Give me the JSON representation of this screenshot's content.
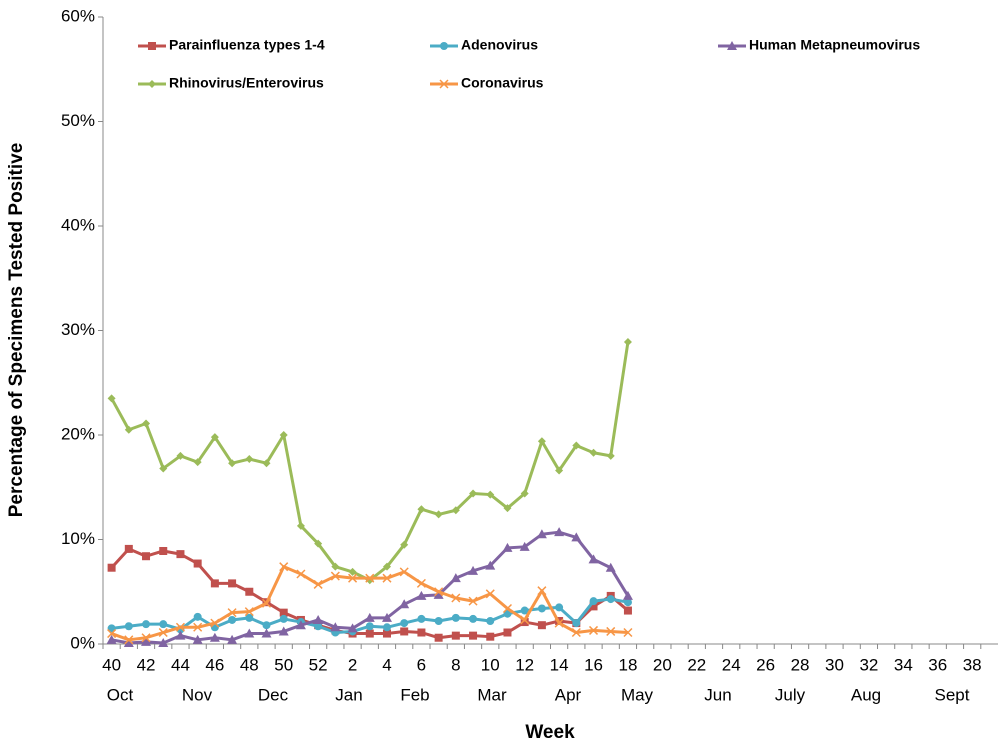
{
  "chart_data": {
    "type": "line",
    "x_label": "Week",
    "y_label": "Percentage of Specimens Tested Positive",
    "categories": [
      "40",
      null,
      "42",
      null,
      "44",
      null,
      "46",
      null,
      "48",
      null,
      "50",
      null,
      "52",
      null,
      "2",
      null,
      "4",
      null,
      "6",
      null,
      "8",
      null,
      "10",
      null,
      "12",
      null,
      "14",
      null,
      "16",
      null,
      "18",
      null,
      "20",
      null,
      "22",
      null,
      "24",
      null,
      "26",
      null,
      "28",
      null,
      "30",
      null,
      "32",
      null,
      "34",
      null,
      "36",
      null,
      "38",
      null
    ],
    "months": [
      "Oct",
      "Nov",
      "Dec",
      "Jan",
      "Feb",
      "Mar",
      "Apr",
      "May",
      "Jun",
      "July",
      "Aug",
      "Sept"
    ],
    "ylim": [
      0,
      60
    ],
    "yticks": [
      {
        "value": 0,
        "label": "0%"
      },
      {
        "value": 10,
        "label": "10%"
      },
      {
        "value": 20,
        "label": "20%"
      },
      {
        "value": 30,
        "label": "30%"
      },
      {
        "value": 40,
        "label": "40%"
      },
      {
        "value": 50,
        "label": "50%"
      },
      {
        "value": 60,
        "label": "60%"
      }
    ],
    "grid": false,
    "series": [
      {
        "name": "Parainfluenza types 1-4",
        "color": "#c0504d",
        "marker": "square",
        "values": [
          7.3,
          9.1,
          8.4,
          8.9,
          8.6,
          7.7,
          5.8,
          5.8,
          5,
          4,
          3,
          2.3,
          1.8,
          1.3,
          1,
          1,
          1,
          1.2,
          1.1,
          0.6,
          0.8,
          0.8,
          0.7,
          1.1,
          2.1,
          1.8,
          2.2,
          2,
          3.6,
          4.6,
          3.2,
          null,
          null,
          null,
          null,
          null,
          null,
          null,
          null,
          null,
          null,
          null,
          null,
          null,
          null,
          null,
          null,
          null,
          null,
          null,
          null,
          null
        ]
      },
      {
        "name": "Adenovirus",
        "color": "#4bacc6",
        "marker": "circle",
        "values": [
          1.5,
          1.7,
          1.9,
          1.9,
          1.4,
          2.6,
          1.6,
          2.3,
          2.5,
          1.8,
          2.4,
          2.1,
          1.7,
          1.1,
          1.2,
          1.7,
          1.6,
          2,
          2.4,
          2.2,
          2.5,
          2.4,
          2.2,
          2.9,
          3.2,
          3.4,
          3.5,
          2,
          4.1,
          4.3,
          4,
          null,
          null,
          null,
          null,
          null,
          null,
          null,
          null,
          null,
          null,
          null,
          null,
          null,
          null,
          null,
          null,
          null,
          null,
          null,
          null,
          null
        ]
      },
      {
        "name": "Human Metapneumovirus",
        "color": "#8064a2",
        "marker": "triangle",
        "values": [
          0.4,
          0.1,
          0.2,
          0.1,
          0.8,
          0.4,
          0.6,
          0.4,
          1,
          1,
          1.2,
          1.8,
          2.3,
          1.6,
          1.5,
          2.5,
          2.5,
          3.8,
          4.6,
          4.7,
          6.3,
          7,
          7.5,
          9.2,
          9.3,
          10.5,
          10.7,
          10.2,
          8.1,
          7.3,
          4.6,
          null,
          null,
          null,
          null,
          null,
          null,
          null,
          null,
          null,
          null,
          null,
          null,
          null,
          null,
          null,
          null,
          null,
          null,
          null,
          null,
          null
        ]
      },
      {
        "name": "Rhinovirus/Enterovirus",
        "color": "#9bbb59",
        "marker": "diamond",
        "values": [
          23.5,
          20.5,
          21.1,
          16.8,
          18,
          17.4,
          19.8,
          17.3,
          17.7,
          17.3,
          20,
          11.3,
          9.6,
          7.4,
          6.9,
          6.1,
          7.4,
          9.5,
          12.9,
          12.4,
          12.8,
          14.4,
          14.3,
          13,
          14.4,
          19.4,
          16.6,
          19,
          18.3,
          18,
          28.9,
          null,
          null,
          null,
          null,
          null,
          null,
          null,
          null,
          null,
          null,
          null,
          null,
          null,
          null,
          null,
          null,
          null,
          null,
          null,
          null,
          null
        ]
      },
      {
        "name": "Coronavirus",
        "color": "#f79646",
        "marker": "x",
        "values": [
          1,
          0.4,
          0.6,
          1.1,
          1.6,
          1.6,
          2,
          3,
          3.1,
          3.9,
          7.4,
          6.7,
          5.7,
          6.5,
          6.3,
          6.3,
          6.3,
          6.9,
          5.8,
          5,
          4.4,
          4.1,
          4.8,
          3.4,
          2.3,
          5.1,
          2,
          1.1,
          1.3,
          1.2,
          1.1,
          null,
          null,
          null,
          null,
          null,
          null,
          null,
          null,
          null,
          null,
          null,
          null,
          null,
          null,
          null,
          null,
          null,
          null,
          null,
          null,
          null
        ]
      }
    ]
  }
}
